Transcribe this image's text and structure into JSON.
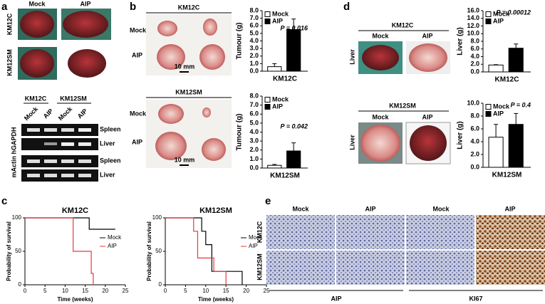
{
  "labels": {
    "panels": [
      "a",
      "b",
      "c",
      "d",
      "e"
    ],
    "a": {
      "cols": [
        "Mock",
        "AIP"
      ],
      "rows": [
        "KM12C",
        "KM12SM"
      ],
      "gel_cols": [
        "KM12C",
        "KM12SM"
      ],
      "gel_lanes": [
        "Mock",
        "AIP",
        "Mock",
        "AIP"
      ],
      "gel_rows": [
        "Spleen",
        "Liver",
        "Spleen",
        "Liver"
      ],
      "gel_axis": "mActin hGAPDH"
    },
    "b": [
      {
        "title": "KM12C",
        "rows": [
          "Mock",
          "AIP"
        ],
        "scale": "10 mm"
      },
      {
        "title": "KM12SM",
        "rows": [
          "Mock",
          "AIP"
        ],
        "scale": "10 mm"
      }
    ],
    "d": [
      {
        "title": "KM12C",
        "cols": [
          "Mock",
          "AIP"
        ],
        "row": "Liver"
      },
      {
        "title": "KM12SM",
        "cols": [
          "Mock",
          "AIP"
        ],
        "row": "Liver"
      }
    ],
    "e": {
      "cols": [
        "Mock",
        "AIP",
        "Mock",
        "AIP"
      ],
      "rows": [
        "KM12C",
        "KM12SM"
      ],
      "groups": [
        "AIP",
        "KI67"
      ]
    }
  },
  "chart_data": [
    {
      "type": "bar",
      "ylabel": "Tumour (g)",
      "annotation": "P = 0.016",
      "categories": [
        "KM12C"
      ],
      "series": [
        {
          "name": "Mock",
          "color": "#ffffff",
          "values": [
            0.6
          ],
          "errors": [
            0.4
          ]
        },
        {
          "name": "AIP",
          "color": "#000000",
          "values": [
            5.5
          ],
          "errors": [
            1.4
          ]
        }
      ],
      "ylim": [
        0,
        8
      ],
      "yticks": [
        {
          "value": 0,
          "label": "0.0"
        },
        {
          "value": 1,
          "label": "1.0"
        },
        {
          "value": 2,
          "label": "2.0"
        },
        {
          "value": 3,
          "label": "3.0"
        },
        {
          "value": 4,
          "label": "4.0"
        },
        {
          "value": 5,
          "label": "5.0"
        },
        {
          "value": 6,
          "label": "6.0"
        },
        {
          "value": 7,
          "label": "7.0"
        },
        {
          "value": 8,
          "label": "8.0"
        }
      ]
    },
    {
      "type": "bar",
      "ylabel": "Tumour (g)",
      "annotation": "P = 0.042",
      "categories": [
        "KM12SM"
      ],
      "series": [
        {
          "name": "Mock",
          "color": "#ffffff",
          "values": [
            0.3
          ],
          "errors": [
            0.1
          ]
        },
        {
          "name": "AIP",
          "color": "#000000",
          "values": [
            1.9
          ],
          "errors": [
            0.9
          ]
        }
      ],
      "ylim": [
        0,
        8
      ],
      "yticks": [
        {
          "value": 0,
          "label": "0.0"
        },
        {
          "value": 1,
          "label": "1.0"
        },
        {
          "value": 2,
          "label": "2.0"
        },
        {
          "value": 3,
          "label": "3.0"
        },
        {
          "value": 4,
          "label": "4.0"
        },
        {
          "value": 5,
          "label": "5.0"
        },
        {
          "value": 6,
          "label": "6.0"
        },
        {
          "value": 7,
          "label": "7.0"
        },
        {
          "value": 8,
          "label": "8.0"
        }
      ]
    },
    {
      "type": "bar",
      "ylabel": "Liver (g)",
      "annotation": "P = 0.00012",
      "categories": [
        "KM12C"
      ],
      "series": [
        {
          "name": "Mock",
          "color": "#ffffff",
          "values": [
            1.8
          ],
          "errors": [
            0.1
          ]
        },
        {
          "name": "AIP",
          "color": "#000000",
          "values": [
            6.2
          ],
          "errors": [
            1.1
          ]
        }
      ],
      "ylim": [
        0,
        16
      ],
      "yticks": [
        {
          "value": 0,
          "label": "0.0"
        },
        {
          "value": 2,
          "label": "2.0"
        },
        {
          "value": 4,
          "label": "4.0"
        },
        {
          "value": 6,
          "label": "6.0"
        },
        {
          "value": 8,
          "label": "8.0"
        },
        {
          "value": 10,
          "label": "10.0"
        },
        {
          "value": 12,
          "label": "12.0"
        },
        {
          "value": 14,
          "label": "14.0"
        },
        {
          "value": 16,
          "label": "16.0"
        }
      ]
    },
    {
      "type": "bar",
      "ylabel": "Liver (g)",
      "annotation": "P = 0.4",
      "categories": [
        "KM12SM"
      ],
      "series": [
        {
          "name": "Mock",
          "color": "#ffffff",
          "values": [
            4.7
          ],
          "errors": [
            2.0
          ]
        },
        {
          "name": "AIP",
          "color": "#000000",
          "values": [
            6.7
          ],
          "errors": [
            1.7
          ]
        }
      ],
      "ylim": [
        0,
        10
      ],
      "yticks": [
        {
          "value": 0,
          "label": "0.0"
        },
        {
          "value": 2,
          "label": "2.0"
        },
        {
          "value": 4,
          "label": "4.0"
        },
        {
          "value": 6,
          "label": "6.0"
        },
        {
          "value": 8,
          "label": "8.0"
        },
        {
          "value": 10,
          "label": "10.0"
        }
      ]
    },
    {
      "type": "line",
      "title": "KM12C",
      "xlabel": "Time (weeks)",
      "ylabel": "Probability of survival",
      "series": [
        {
          "name": "Mock",
          "color": "#000000",
          "x": [
            0,
            16,
            16,
            22.5
          ],
          "values": [
            100,
            100,
            83,
            83
          ]
        },
        {
          "name": "AIP",
          "color": "#e8383d",
          "x": [
            0,
            12,
            12,
            16.5,
            16.5,
            17,
            17
          ],
          "values": [
            100,
            100,
            50,
            50,
            17,
            17,
            0
          ]
        }
      ],
      "xlim": [
        0,
        25
      ],
      "xticks": [
        0,
        5,
        10,
        15,
        20,
        25
      ],
      "ylim": [
        0,
        100
      ],
      "yticks": [
        0,
        50,
        100
      ]
    },
    {
      "type": "line",
      "title": "KM12SM",
      "xlabel": "Time (weeks)",
      "ylabel": "Probability of survival",
      "series": [
        {
          "name": "Mock",
          "color": "#000000",
          "x": [
            0,
            9,
            9,
            10,
            10,
            11.5,
            11.5,
            19,
            19
          ],
          "values": [
            100,
            100,
            80,
            80,
            60,
            60,
            20,
            20,
            0
          ]
        },
        {
          "name": "AIP",
          "color": "#e8383d",
          "x": [
            0,
            7,
            7,
            8,
            8,
            12,
            12,
            15,
            15
          ],
          "values": [
            100,
            100,
            80,
            80,
            40,
            40,
            20,
            20,
            0
          ]
        }
      ],
      "xlim": [
        0,
        25
      ],
      "xticks": [
        0,
        5,
        10,
        15,
        20,
        25
      ],
      "ylim": [
        0,
        100
      ],
      "yticks": [
        0,
        50,
        100
      ]
    }
  ]
}
